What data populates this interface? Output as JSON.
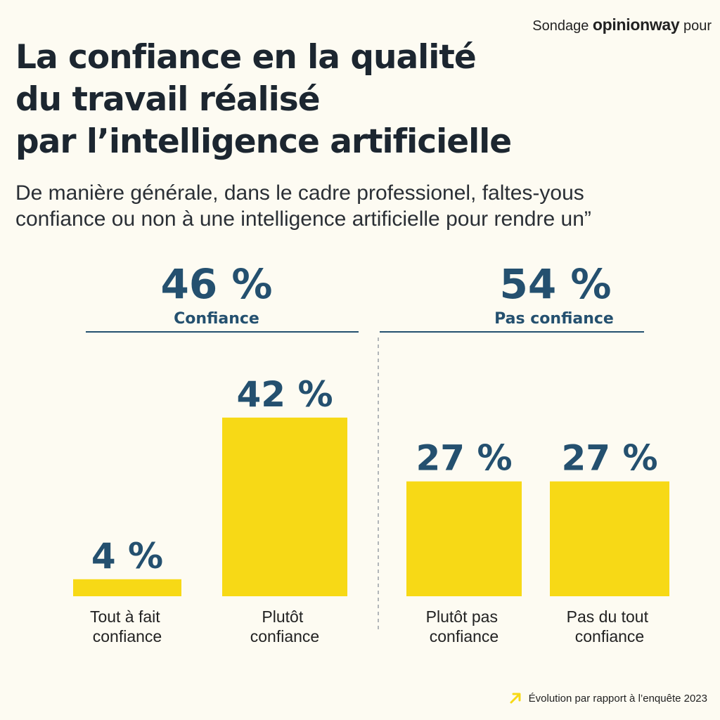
{
  "header": {
    "sponsor_prefix": "Sondage",
    "sponsor_brand": "opinionway",
    "sponsor_suffix": "pour"
  },
  "title_lines": [
    "La confiance en la qualité",
    "du travail réalisé",
    "par l’intelligence artificielle"
  ],
  "question_lines": [
    "De manière générale, dans le cadre professionel, faltes-yous",
    "confiance ou non à une intelligence artificielle pour rendre un”"
  ],
  "colors": {
    "bar": "#f7d916",
    "accent": "#24506f",
    "arrow": "#f7d916",
    "divider": "#24506f"
  },
  "chart_data": {
    "type": "bar",
    "groups": [
      {
        "total": "46 %",
        "label": "Confiance"
      },
      {
        "total": "54 %",
        "label": "Pas confiance"
      }
    ],
    "bars": [
      {
        "label_lines": [
          "Tout à fait",
          "confiance"
        ],
        "value": 4,
        "value_label": "4 %"
      },
      {
        "label_lines": [
          "Plutôt",
          "confiance"
        ],
        "value": 42,
        "value_label": "42 %"
      },
      {
        "label_lines": [
          "Plutôt pas",
          "confiance"
        ],
        "value": 27,
        "value_label": "27 %"
      },
      {
        "label_lines": [
          "Pas du tout",
          "confiance"
        ],
        "value": 27,
        "value_label": "27 %"
      }
    ],
    "categories": [
      "Tout à fait confiance",
      "Plutôt confiance",
      "Plutôt pas confiance",
      "Pas du tout confiance"
    ],
    "values": [
      4,
      42,
      27,
      27
    ],
    "ylim": [
      0,
      50
    ],
    "title": "",
    "xlabel": "",
    "ylabel": ""
  },
  "footer": {
    "note": "Évolution par rapport à l’enquête 2023",
    "icon": "arrow-up-right-icon"
  }
}
